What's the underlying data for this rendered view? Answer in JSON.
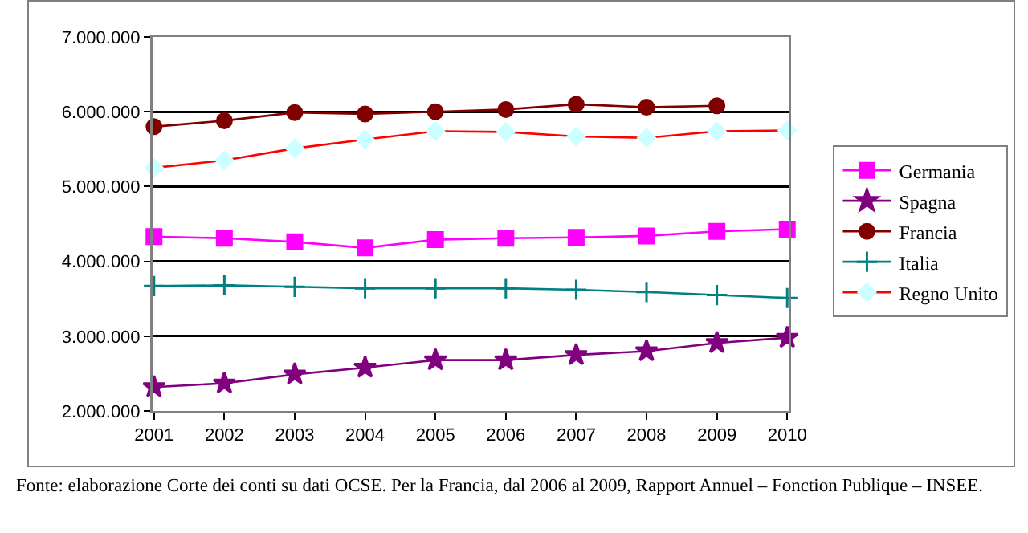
{
  "chart_data": {
    "type": "line",
    "categories": [
      "2001",
      "2002",
      "2003",
      "2004",
      "2005",
      "2006",
      "2007",
      "2008",
      "2009",
      "2010"
    ],
    "series": [
      {
        "name": "Germania",
        "color": "#ff00ff",
        "marker": "square",
        "values": [
          4330000,
          4310000,
          4260000,
          4180000,
          4290000,
          4310000,
          4320000,
          4340000,
          4400000,
          4430000
        ]
      },
      {
        "name": "Spagna",
        "color": "#800080",
        "marker": "star",
        "values": [
          2320000,
          2370000,
          2490000,
          2580000,
          2680000,
          2680000,
          2750000,
          2800000,
          2910000,
          2980000
        ]
      },
      {
        "name": "Francia",
        "color": "#800000",
        "marker": "circle",
        "values": [
          5800000,
          5880000,
          5990000,
          5970000,
          6000000,
          6030000,
          6100000,
          6060000,
          6080000,
          null
        ]
      },
      {
        "name": "Italia",
        "color": "#008080",
        "marker": "cross",
        "values": [
          3670000,
          3680000,
          3660000,
          3640000,
          3640000,
          3640000,
          3620000,
          3590000,
          3550000,
          3510000
        ]
      },
      {
        "name": "Regno Unito",
        "color": "#ff0000",
        "marker": "diamond",
        "colors": [
          "#ccffff",
          "#ccffff",
          "#ccffff",
          "#ccffff",
          "#ccffff",
          "#ccffff",
          "#ccffff",
          "#ccffff",
          "#ccffff",
          "#ccffff"
        ],
        "values": [
          5250000,
          5350000,
          5510000,
          5630000,
          5740000,
          5730000,
          5670000,
          5650000,
          5740000,
          5750000
        ]
      }
    ],
    "ylim": [
      2000000,
      7000000
    ],
    "yticks": [
      {
        "value": 2000000,
        "label": "2.000.000"
      },
      {
        "value": 3000000,
        "label": "3.000.000"
      },
      {
        "value": 4000000,
        "label": "4.000.000"
      },
      {
        "value": 5000000,
        "label": "5.000.000"
      },
      {
        "value": 6000000,
        "label": "6.000.000"
      },
      {
        "value": 7000000,
        "label": "7.000.000"
      }
    ],
    "grid": "y",
    "legend": "right",
    "annotations": [
      "Fonte: elaborazione Corte dei conti su dati OCSE. Per la Francia, dal 2006 al 2009, Rapport Annuel – Fonction Publique – INSEE."
    ]
  }
}
